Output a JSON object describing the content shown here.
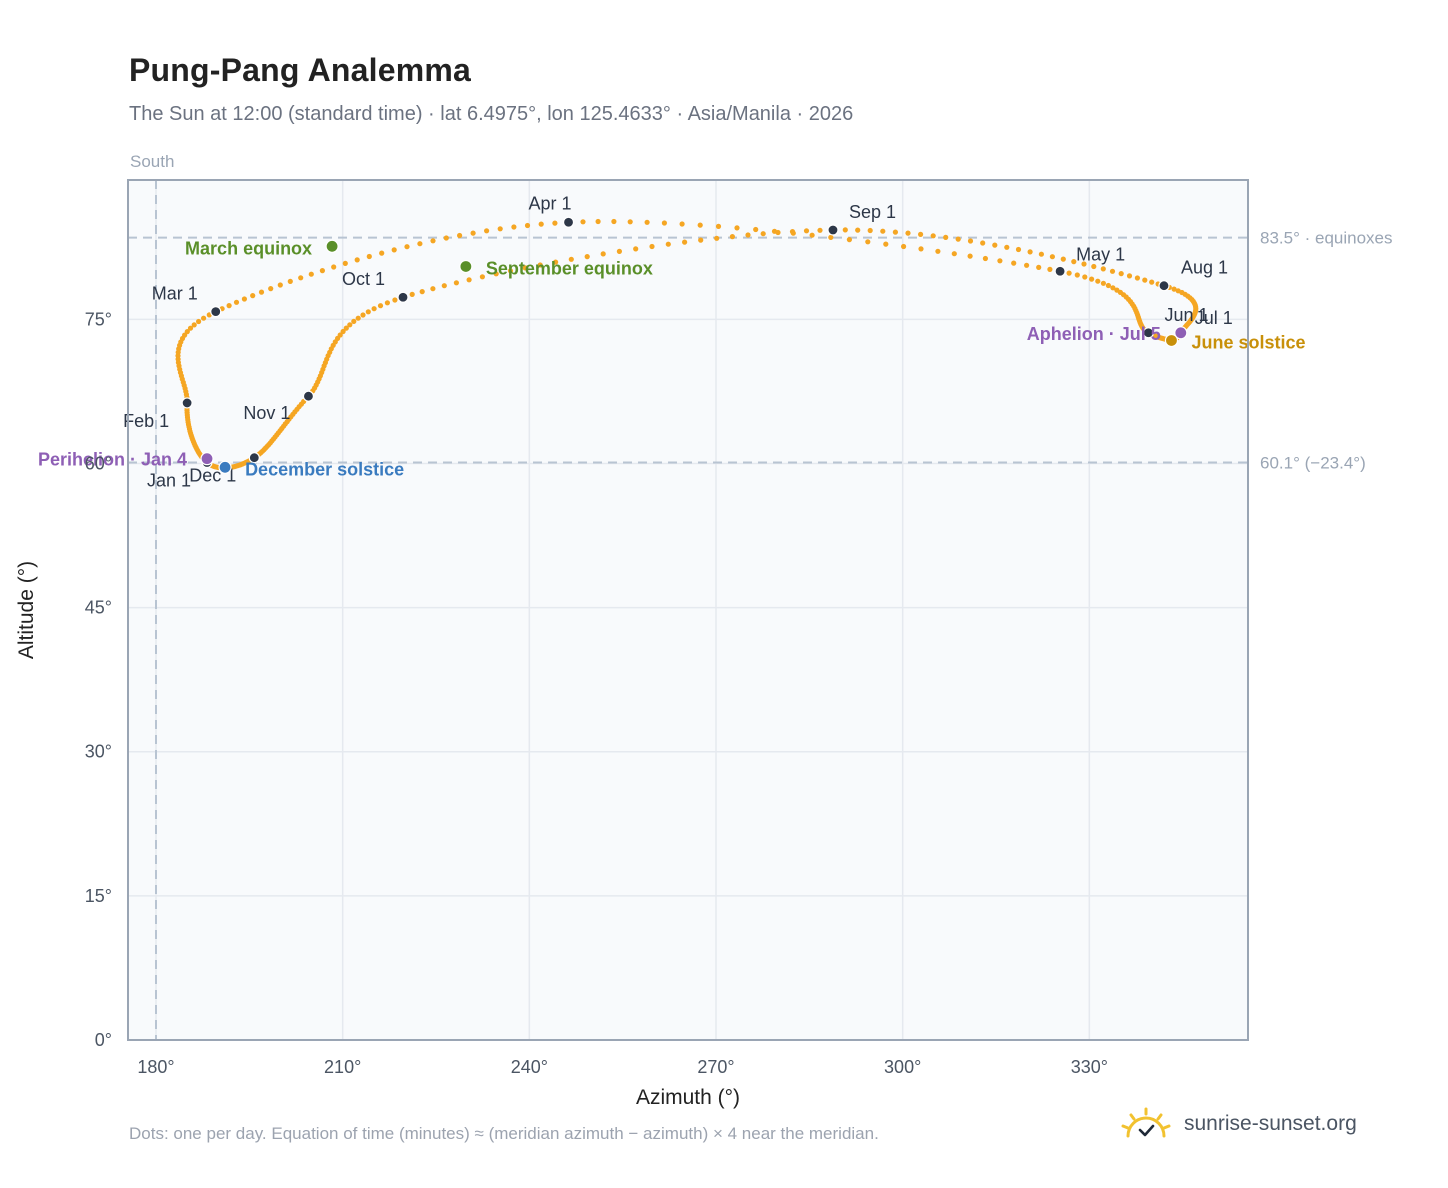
{
  "header": {
    "title": "Pung-Pang Analemma",
    "subtitle": "The Sun at 12:00 (standard time) · lat 6.4975°, lon 125.4633° · Asia/Manila · 2026"
  },
  "footer": {
    "note": "Dots: one per day. Equation of time (minutes) ≈ (meridian azimuth − azimuth) × 4 near the meridian.",
    "brand": "sunrise-sunset.org"
  },
  "colors": {
    "path": "#f5a623",
    "month_marker": "#2d3748",
    "equinox": "#5a8f29",
    "december_solstice": "#3a7bbf",
    "june_solstice": "#c8900a",
    "apsis": "#8e5fb5",
    "plot_bg": "#f8fafc",
    "grid": "#e5e9ef",
    "frame": "#9aa5b4",
    "ref_line": "#b8c4d2"
  },
  "chart_data": {
    "type": "scatter",
    "title": "Pung-Pang Analemma",
    "xlabel": "Azimuth (°)",
    "ylabel": "Altitude (°)",
    "xlim": [
      175.5,
      355.5
    ],
    "ylim": [
      0,
      89.5
    ],
    "xticks": [
      180,
      210,
      240,
      270,
      300,
      330
    ],
    "xtick_labels": [
      "180°",
      "210°",
      "240°",
      "270°",
      "300°",
      "330°"
    ],
    "yticks": [
      0,
      15,
      30,
      45,
      60,
      75
    ],
    "ytick_labels": [
      "0°",
      "15°",
      "30°",
      "45°",
      "60°",
      "75°"
    ],
    "grid": true,
    "meridian": {
      "azimuth": 180,
      "label": "South"
    },
    "reference_lines": [
      {
        "altitude": 83.5,
        "label": "83.5° · equinoxes"
      },
      {
        "altitude": 60.1,
        "label": "60.1° (−23.4°)"
      }
    ],
    "month_markers": [
      {
        "label": "Jan 1",
        "az": 188.2,
        "alt": 60.1
      },
      {
        "label": "Feb 1",
        "az": 185.0,
        "alt": 66.3
      },
      {
        "label": "Mar 1",
        "az": 189.6,
        "alt": 75.8
      },
      {
        "label": "Apr 1",
        "az": 246.3,
        "alt": 85.1
      },
      {
        "label": "May 1",
        "az": 325.3,
        "alt": 80.0
      },
      {
        "label": "Jun 1",
        "az": 339.5,
        "alt": 73.6
      },
      {
        "label": "Jul 1",
        "az": 344.7,
        "alt": 73.6
      },
      {
        "label": "Aug 1",
        "az": 342.0,
        "alt": 78.5
      },
      {
        "label": "Sep 1",
        "az": 288.8,
        "alt": 84.3
      },
      {
        "label": "Oct 1",
        "az": 219.7,
        "alt": 77.3
      },
      {
        "label": "Nov 1",
        "az": 204.5,
        "alt": 67.0
      },
      {
        "label": "Dec 1",
        "az": 195.8,
        "alt": 60.6
      }
    ],
    "events": [
      {
        "label": "March equinox",
        "az": 208.3,
        "alt": 82.6
      },
      {
        "label": "September equinox",
        "az": 229.8,
        "alt": 80.5
      },
      {
        "label": "December solstice",
        "az": 191.1,
        "alt": 59.6
      },
      {
        "label": "June solstice",
        "az": 343.2,
        "alt": 72.8
      },
      {
        "label": "Perihelion · Jan 4",
        "az": 188.2,
        "alt": 60.5
      },
      {
        "label": "Aphelion · Jul 5",
        "az": 344.7,
        "alt": 73.6
      }
    ]
  }
}
